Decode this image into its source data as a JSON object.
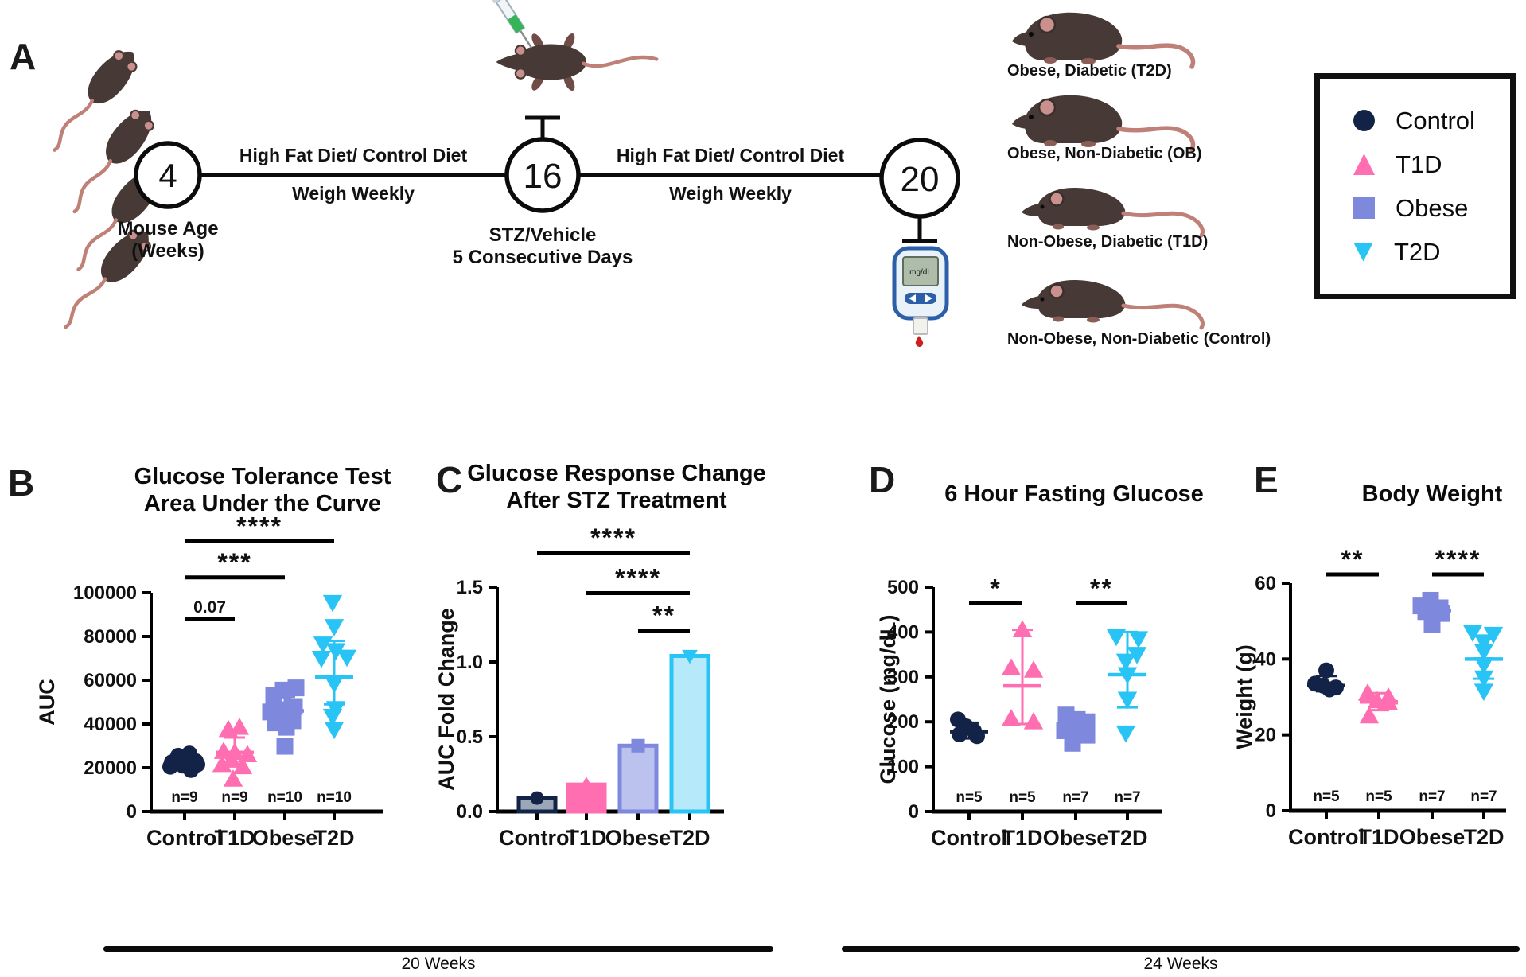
{
  "figure": {
    "panel_labels": {
      "a": "A",
      "b": "B",
      "c": "C",
      "d": "D",
      "e": "E"
    }
  },
  "panel_a": {
    "timeline": {
      "node1": "4",
      "node2": "16",
      "node3": "20",
      "mouse_age_line1": "Mouse Age",
      "mouse_age_line2": "(Weeks)",
      "segment1_top": "High Fat Diet/ Control Diet",
      "segment1_bottom": "Weigh Weekly",
      "segment2_top": "High Fat Diet/ Control Diet",
      "segment2_bottom": "Weigh Weekly",
      "stz_line1": "STZ/Vehicle",
      "stz_line2": "5 Consecutive Days",
      "glucometer_screen": "mg/dL"
    },
    "mouse_groups": [
      "Obese, Diabetic (T2D)",
      "Obese, Non-Diabetic (OB)",
      "Non-Obese, Diabetic (T1D)",
      "Non-Obese, Non-Diabetic (Control)"
    ],
    "legend": {
      "items": [
        {
          "label": "Control",
          "marker": "circle",
          "color": "#132347"
        },
        {
          "label": "T1D",
          "marker": "triangle-up",
          "color": "#FF6EB0"
        },
        {
          "label": "Obese",
          "marker": "square",
          "color": "#7E88DD"
        },
        {
          "label": "T2D",
          "marker": "triangle-down",
          "color": "#29C4F6"
        }
      ]
    }
  },
  "chart_data": [
    {
      "type": "scatter",
      "title": "Glucose Tolerance Test\nArea Under the Curve",
      "ylabel": "AUC",
      "ylim": [
        0,
        100000
      ],
      "yticks": [
        0,
        20000,
        40000,
        60000,
        80000,
        100000
      ],
      "ytick_labels": [
        "0",
        "20000",
        "40000",
        "60000",
        "80000",
        "100000"
      ],
      "categories": [
        "Control",
        "T1D",
        "Obese",
        "T2D"
      ],
      "n_labels": [
        "n=9",
        "n=9",
        "n=10",
        "n=10"
      ],
      "series": [
        {
          "name": "Control",
          "marker": "circle",
          "color": "#132347",
          "values": [
            26500,
            25500,
            23000,
            22500,
            22000,
            21500,
            21000,
            20500,
            19000
          ],
          "dx": [
            6,
            -8,
            14,
            -16,
            2,
            16,
            -2,
            -18,
            8
          ],
          "mean": 23000,
          "sd_low": 20800,
          "sd_high": 25300
        },
        {
          "name": "T1D",
          "marker": "triangle-up",
          "color": "#FF6EB0",
          "values": [
            38500,
            37500,
            27500,
            27000,
            26000,
            23500,
            21500,
            20500,
            14800
          ],
          "dx": [
            6,
            -8,
            -14,
            0,
            16,
            -4,
            -16,
            10,
            -2
          ],
          "mean": 27000,
          "sd_low": 21500,
          "sd_high": 33800
        },
        {
          "name": "Obese",
          "marker": "square",
          "color": "#7E88DD",
          "values": [
            56500,
            55500,
            53000,
            48000,
            46500,
            45500,
            41500,
            40500,
            38500,
            29800
          ],
          "dx": [
            14,
            -2,
            -14,
            12,
            -4,
            -18,
            10,
            -12,
            2,
            0
          ],
          "mean": 46000,
          "sd_low": 41000,
          "sd_high": 52500
        },
        {
          "name": "T2D",
          "marker": "triangle-down",
          "color": "#29C4F6",
          "values": [
            95500,
            84500,
            76500,
            73500,
            70500,
            70000,
            58500,
            47000,
            43500,
            37500
          ],
          "dx": [
            -2,
            0,
            -14,
            2,
            16,
            -16,
            0,
            2,
            -2,
            0
          ],
          "mean": 61500,
          "sd_low": 49000,
          "sd_high": 78000
        }
      ],
      "significance": [
        {
          "label": "****",
          "from": 0,
          "to": 3,
          "y": 123500
        },
        {
          "label": "***",
          "from": 0,
          "to": 2,
          "y": 107000
        },
        {
          "label": "0.07",
          "from": 0,
          "to": 1,
          "y": 88000
        }
      ]
    },
    {
      "type": "bar",
      "title": "Glucose Response Change\nAfter STZ Treatment",
      "ylabel": "AUC Fold Change",
      "ylim": [
        0,
        1.5
      ],
      "yticks": [
        0.0,
        0.5,
        1.0,
        1.5
      ],
      "ytick_labels": [
        "0.0",
        "0.5",
        "1.0",
        "1.5"
      ],
      "categories": [
        "Control",
        "T1D",
        "Obese",
        "T2D"
      ],
      "bars": [
        {
          "name": "Control",
          "value": 0.09,
          "fill": "#9AA7B8",
          "stroke": "#132347",
          "marker": "circle",
          "marker_color": "#132347"
        },
        {
          "name": "T1D",
          "value": 0.18,
          "fill": "#FF6EB0",
          "stroke": "#FF6EB0",
          "marker": "triangle-up",
          "marker_color": "#FF6EB0"
        },
        {
          "name": "Obese",
          "value": 0.44,
          "fill": "#BCC2EE",
          "stroke": "#7E88DD",
          "marker": "square",
          "marker_color": "#7E88DD"
        },
        {
          "name": "T2D",
          "value": 1.04,
          "fill": "#B6E9FA",
          "stroke": "#29C4F6",
          "marker": "triangle-down",
          "marker_color": "#29C4F6"
        }
      ],
      "significance": [
        {
          "label": "****",
          "from": 0,
          "to": 3,
          "y": 1.73
        },
        {
          "label": "****",
          "from": 1,
          "to": 3,
          "y": 1.46
        },
        {
          "label": "**",
          "from": 2,
          "to": 3,
          "y": 1.21
        }
      ]
    },
    {
      "type": "scatter",
      "title": "6 Hour Fasting Glucose",
      "ylabel": "Glucose (mg/dL)",
      "ylim": [
        0,
        500
      ],
      "yticks": [
        0,
        100,
        200,
        300,
        400,
        500
      ],
      "ytick_labels": [
        "0",
        "100",
        "200",
        "300",
        "400",
        "500"
      ],
      "categories": [
        "Control",
        "T1D",
        "Obese",
        "T2D"
      ],
      "n_labels": [
        "n=5",
        "n=5",
        "n=7",
        "n=7"
      ],
      "series": [
        {
          "name": "Control",
          "marker": "circle",
          "color": "#132347",
          "values": [
            205,
            190,
            180,
            172,
            168
          ],
          "dx": [
            -14,
            -4,
            6,
            -12,
            10
          ],
          "mean": 178,
          "sd_low": 163,
          "sd_high": 198
        },
        {
          "name": "T1D",
          "marker": "triangle-up",
          "color": "#FF6EB0",
          "values": [
            405,
            320,
            315,
            207,
            200
          ],
          "dx": [
            0,
            -14,
            14,
            -14,
            14
          ],
          "mean": 280,
          "sd_low": 195,
          "sd_high": 405
        },
        {
          "name": "Obese",
          "marker": "square",
          "color": "#7E88DD",
          "values": [
            215,
            205,
            200,
            180,
            175,
            170,
            152
          ],
          "dx": [
            -12,
            2,
            14,
            -14,
            0,
            14,
            -4
          ],
          "mean": 190,
          "sd_low": 163,
          "sd_high": 205
        },
        {
          "name": "T2D",
          "marker": "triangle-down",
          "color": "#29C4F6",
          "values": [
            390,
            385,
            350,
            335,
            305,
            250,
            175
          ],
          "dx": [
            -14,
            14,
            12,
            -2,
            0,
            0,
            -2
          ],
          "mean": 305,
          "sd_low": 232,
          "sd_high": 400
        }
      ],
      "significance": [
        {
          "label": "*",
          "from": 0,
          "to": 1,
          "y": 464
        },
        {
          "label": "**",
          "from": 2,
          "to": 3,
          "y": 464
        }
      ]
    },
    {
      "type": "scatter",
      "title": "Body Weight",
      "ylabel": "Weight (g)",
      "ylim": [
        0,
        60
      ],
      "yticks": [
        0,
        20,
        40,
        60
      ],
      "ytick_labels": [
        "0",
        "20",
        "40",
        "60"
      ],
      "categories": [
        "Control",
        "T1D",
        "Obese",
        "T2D"
      ],
      "n_labels": [
        "n=5",
        "n=5",
        "n=7",
        "n=7"
      ],
      "series": [
        {
          "name": "Control",
          "marker": "circle",
          "color": "#132347",
          "values": [
            37,
            33.5,
            33,
            32.5,
            32
          ],
          "dx": [
            0,
            -14,
            -4,
            12,
            4
          ],
          "mean": 33,
          "sd_low": 31.5,
          "sd_high": 35.5
        },
        {
          "name": "T1D",
          "marker": "triangle-up",
          "color": "#FF6EB0",
          "values": [
            31,
            30,
            29,
            28.5,
            25
          ],
          "dx": [
            -14,
            12,
            -2,
            12,
            -12
          ],
          "mean": 28.7,
          "sd_low": 26.5,
          "sd_high": 31
        },
        {
          "name": "Obese",
          "marker": "square",
          "color": "#7E88DD",
          "values": [
            55.5,
            54,
            53.5,
            53,
            52.5,
            52,
            49
          ],
          "dx": [
            -2,
            -14,
            10,
            2,
            -8,
            12,
            0
          ],
          "mean": 52.8,
          "sd_low": 50.8,
          "sd_high": 54.6
        },
        {
          "name": "T2D",
          "marker": "triangle-down",
          "color": "#29C4F6",
          "values": [
            47,
            46.5,
            44.5,
            42,
            38.5,
            35,
            31.5
          ],
          "dx": [
            -14,
            12,
            0,
            0,
            0,
            0,
            0
          ],
          "mean": 40,
          "sd_low": 34.8,
          "sd_high": 46
        }
      ],
      "significance": [
        {
          "label": "**",
          "from": 0,
          "to": 1,
          "y": 62.3
        },
        {
          "label": "****",
          "from": 2,
          "to": 3,
          "y": 62.3
        }
      ]
    }
  ],
  "footer": {
    "left_label": "20 Weeks",
    "right_label": "24 Weeks"
  }
}
